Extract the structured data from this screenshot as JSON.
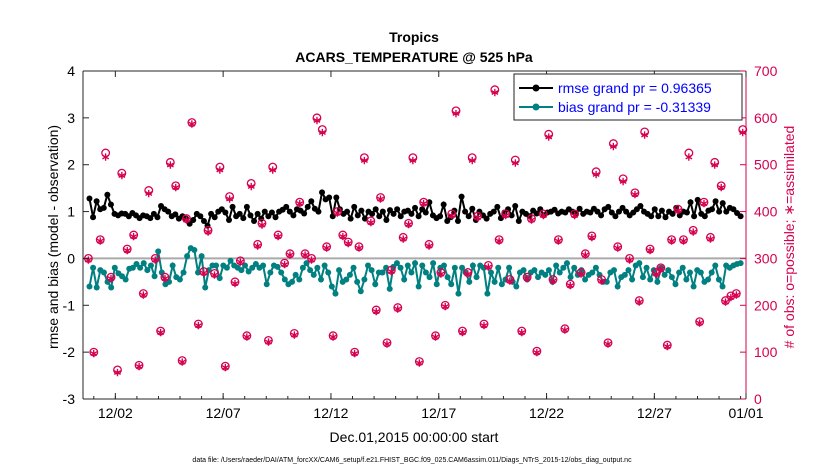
{
  "chart_data": {
    "type": "line",
    "title": "Tropics",
    "subtitle": "ACARS_TEMPERATURE @ 525 hPa",
    "xlabel": "Dec.01,2015 00:00:00 start",
    "ylabel_left": "rmse and bias (model - observation)",
    "ylabel_right": "# of obs: o=possible; ∗=assimilated",
    "footer": "data file: /Users/raeder/DAI/ATM_forcXX/CAM6_setup/f.e21.FHIST_BGC.f09_025.CAM6assim.011/Diags_NTrS_2015-12/obs_diag_output.nc",
    "xlim": [
      0.5,
      31.25
    ],
    "ylim_left": [
      -3,
      4
    ],
    "ylim_right": [
      0,
      700
    ],
    "x_ticks": [
      {
        "value": 2,
        "label": "12/02"
      },
      {
        "value": 7,
        "label": "12/07"
      },
      {
        "value": 12,
        "label": "12/12"
      },
      {
        "value": 17,
        "label": "12/17"
      },
      {
        "value": 22,
        "label": "12/22"
      },
      {
        "value": 27,
        "label": "12/27"
      },
      {
        "value": 32,
        "label": "01/01"
      }
    ],
    "y_ticks_left": [
      "-3",
      "-2",
      "-1",
      "0",
      "1",
      "2",
      "3",
      "4"
    ],
    "y_ticks_right": [
      "0",
      "100",
      "200",
      "300",
      "400",
      "500",
      "600",
      "700"
    ],
    "legend": {
      "placement": "top-right",
      "entries": [
        {
          "label": "rmse grand pr = 0.96365",
          "color": "#0000ff"
        },
        {
          "label": "bias grand pr = -0.31339",
          "color": "#0000ff"
        }
      ]
    },
    "series": [
      {
        "name": "rmse",
        "color": "#000000",
        "axis": "left",
        "values": [
          1.28,
          0.88,
          1.22,
          1.05,
          1.08,
          1.36,
          1.15,
          0.95,
          0.92,
          0.96,
          0.95,
          0.9,
          0.97,
          0.92,
          0.86,
          0.92,
          0.9,
          0.86,
          0.95,
          0.88,
          1.12,
          1.05,
          1.0,
          0.9,
          0.94,
          0.85,
          0.9,
          0.85,
          0.74,
          0.82,
          0.95,
          0.9,
          0.8,
          0.7,
          0.95,
          0.88,
          1.0,
          1.05,
          0.98,
          0.82,
          1.1,
          0.9,
          0.95,
          0.86,
          1.1,
          0.92,
          0.8,
          0.95,
          0.85,
          1.0,
          0.9,
          0.98,
          0.88,
          1.0,
          1.04,
          1.1,
          1.0,
          0.92,
          1.05,
          1.02,
          0.96,
          1.1,
          1.22,
          1.06,
          1.0,
          1.41,
          1.26,
          1.3,
          0.9,
          1.3,
          1.05,
          0.95,
          1.0,
          0.85,
          1.1,
          0.92,
          1.02,
          0.85,
          1.0,
          0.95,
          1.05,
          0.9,
          1.0,
          0.82,
          1.03,
          0.95,
          1.05,
          0.9,
          1.0,
          1.02,
          0.95,
          1.08,
          0.9,
          1.05,
          0.98,
          1.2,
          0.92,
          0.86,
          0.9,
          1.15,
          0.8,
          0.88,
          1.02,
          0.8,
          1.32,
          1.0,
          0.9,
          1.06,
          0.82,
          1.0,
          0.92,
          0.85,
          0.95,
          1.0,
          1.1,
          0.86,
          0.98,
          1.05,
          0.92,
          1.12,
          0.8,
          1.0,
          0.95,
          0.9,
          1.02,
          0.96,
          1.05,
          0.92,
          0.98,
          1.0,
          1.04,
          0.96,
          1.0,
          0.98,
          1.05,
          1.0,
          0.95,
          1.06,
          0.95,
          1.0,
          0.98,
          1.06,
          1.0,
          0.92,
          1.05,
          1.1,
          0.98,
          0.9,
          1.0,
          1.08,
          1.0,
          0.92,
          0.98,
          1.05,
          1.12,
          1.0,
          0.95,
          0.9,
          1.05,
          0.9,
          1.02,
          0.88,
          1.0,
          0.95,
          1.08,
          0.92,
          1.0,
          0.98,
          1.2,
          0.9,
          1.25,
          0.95,
          0.9,
          1.02,
          1.05,
          1.22,
          1.0,
          1.18,
          1.0,
          1.08,
          1.05,
          0.97,
          0.9
        ]
      },
      {
        "name": "bias",
        "color": "#008080",
        "axis": "left",
        "values": [
          -0.6,
          -0.2,
          -0.62,
          -0.25,
          -0.3,
          -0.5,
          -0.62,
          -0.2,
          -0.32,
          -0.38,
          -0.45,
          -0.22,
          -0.2,
          -0.12,
          -0.2,
          -0.1,
          -0.25,
          -0.15,
          -0.38,
          0.15,
          -0.3,
          -0.55,
          -0.5,
          -0.15,
          -0.4,
          -0.45,
          -0.3,
          0.05,
          0.22,
          0.18,
          -0.3,
          0.05,
          -0.62,
          -0.25,
          -0.15,
          -0.15,
          -0.42,
          -0.15,
          -0.2,
          -0.05,
          -0.15,
          -0.2,
          -0.25,
          -0.15,
          -0.28,
          -0.2,
          -0.12,
          -0.2,
          -0.15,
          -0.55,
          -0.3,
          -0.15,
          -0.18,
          -0.3,
          -0.45,
          -0.55,
          -0.5,
          -0.35,
          -0.45,
          -0.2,
          -0.1,
          -0.25,
          -0.35,
          -0.2,
          -0.45,
          -0.15,
          -0.3,
          -0.6,
          -0.75,
          -0.25,
          -0.5,
          -0.45,
          -0.35,
          -0.2,
          -0.5,
          -0.7,
          -0.45,
          -0.15,
          -0.25,
          -0.55,
          -0.3,
          -0.3,
          -0.2,
          -0.65,
          -0.18,
          -0.1,
          -0.2,
          -0.45,
          -0.15,
          -0.3,
          -0.1,
          -0.6,
          -0.15,
          -0.3,
          -0.4,
          -0.1,
          -0.55,
          -0.2,
          -0.15,
          -0.4,
          -0.55,
          -0.2,
          -0.75,
          -0.2,
          -0.3,
          -0.5,
          -0.15,
          -0.4,
          -0.15,
          -0.2,
          -0.75,
          -0.3,
          -0.5,
          -0.2,
          -0.55,
          -0.45,
          -0.2,
          -0.5,
          -0.6,
          -0.3,
          -0.25,
          -0.45,
          -0.3,
          -0.25,
          -0.4,
          -0.3,
          -0.35,
          -0.25,
          -0.5,
          -0.15,
          -0.3,
          -0.2,
          -0.1,
          -0.4,
          -0.2,
          -0.35,
          -0.25,
          -0.45,
          -0.35,
          -0.3,
          -0.2,
          -0.35,
          -0.5,
          -0.5,
          -0.3,
          -0.25,
          -0.6,
          -0.4,
          -0.35,
          -0.25,
          -0.45,
          -0.15,
          -0.1,
          -0.4,
          -0.2,
          -0.45,
          -0.25,
          -0.5,
          -0.2,
          -0.35,
          -0.25,
          -0.4,
          -0.55,
          -0.3,
          -0.2,
          -0.45,
          -0.3,
          -0.6,
          -0.25,
          -0.3,
          -0.5,
          -0.45,
          -0.3,
          -0.15,
          -0.45,
          -0.6,
          -0.15,
          -0.2,
          -0.15,
          -0.12,
          -0.1
        ]
      }
    ],
    "obs_possible": {
      "name": "possible",
      "marker": "o",
      "color": "#d6004f",
      "axis": "right",
      "x": [
        0.75,
        1.0,
        1.3,
        1.55,
        1.8,
        2.1,
        2.3,
        2.55,
        2.85,
        3.1,
        3.3,
        3.55,
        3.85,
        4.1,
        4.3,
        4.55,
        4.8,
        5.1,
        5.3,
        5.55,
        5.85,
        6.1,
        6.3,
        6.6,
        6.85,
        7.1,
        7.3,
        7.55,
        7.8,
        8.1,
        8.3,
        8.6,
        8.8,
        9.1,
        9.3,
        9.55,
        9.85,
        10.1,
        10.3,
        10.55,
        10.8,
        11.1,
        11.35,
        11.6,
        11.8,
        12.1,
        12.3,
        12.55,
        12.8,
        13.1,
        13.3,
        13.55,
        13.85,
        14.1,
        14.3,
        14.6,
        14.8,
        15.1,
        15.35,
        15.6,
        15.8,
        16.1,
        16.3,
        16.55,
        16.85,
        17.1,
        17.3,
        17.6,
        17.8,
        18.1,
        18.35,
        18.55,
        18.8,
        19.1,
        19.3,
        19.6,
        19.8,
        20.1,
        20.3,
        20.55,
        20.85,
        21.1,
        21.3,
        21.55,
        21.85,
        22.1,
        22.3,
        22.55,
        22.85,
        23.1,
        23.3,
        23.6,
        23.8,
        24.1,
        24.3,
        24.55,
        24.85,
        25.1,
        25.3,
        25.55,
        25.85,
        26.1,
        26.3,
        26.55,
        26.8,
        27.1,
        27.3,
        27.6,
        27.8,
        28.1,
        28.35,
        28.6,
        28.8,
        29.1,
        29.3,
        29.6,
        29.8,
        30.1,
        30.3,
        30.55,
        30.8,
        31.1
      ],
      "values": [
        300,
        100,
        340,
        525,
        260,
        62,
        482,
        320,
        350,
        72,
        225,
        445,
        300,
        145,
        260,
        505,
        455,
        82,
        385,
        590,
        160,
        272,
        360,
        268,
        495,
        70,
        432,
        250,
        295,
        135,
        460,
        330,
        375,
        125,
        495,
        350,
        290,
        310,
        140,
        420,
        310,
        300,
        600,
        575,
        325,
        135,
        400,
        350,
        335,
        100,
        325,
        515,
        380,
        190,
        430,
        120,
        275,
        195,
        345,
        375,
        515,
        80,
        420,
        330,
        135,
        270,
        200,
        395,
        615,
        145,
        270,
        515,
        390,
        160,
        285,
        660,
        340,
        395,
        255,
        510,
        145,
        260,
        385,
        102,
        395,
        565,
        255,
        340,
        150,
        245,
        395,
        270,
        310,
        348,
        485,
        255,
        120,
        545,
        325,
        470,
        300,
        440,
        210,
        570,
        320,
        270,
        280,
        115,
        340,
        405,
        340,
        525,
        360,
        165,
        420,
        345,
        505,
        455,
        210,
        220,
        225,
        575
      ]
    },
    "obs_assimilated": {
      "name": "assimilated",
      "marker": "*",
      "color": "#d6004f",
      "axis": "right",
      "x": [
        0.75,
        1.0,
        1.3,
        1.55,
        1.8,
        2.1,
        2.3,
        2.55,
        2.85,
        3.1,
        3.3,
        3.55,
        3.85,
        4.1,
        4.3,
        4.55,
        4.8,
        5.1,
        5.3,
        5.55,
        5.85,
        6.1,
        6.3,
        6.6,
        6.85,
        7.1,
        7.3,
        7.55,
        7.8,
        8.1,
        8.3,
        8.6,
        8.8,
        9.1,
        9.3,
        9.55,
        9.85,
        10.1,
        10.3,
        10.55,
        10.8,
        11.1,
        11.35,
        11.6,
        11.8,
        12.1,
        12.3,
        12.55,
        12.8,
        13.1,
        13.3,
        13.55,
        13.85,
        14.1,
        14.3,
        14.6,
        14.8,
        15.1,
        15.35,
        15.6,
        15.8,
        16.1,
        16.3,
        16.55,
        16.85,
        17.1,
        17.3,
        17.6,
        17.8,
        18.1,
        18.35,
        18.55,
        18.8,
        19.1,
        19.3,
        19.6,
        19.8,
        20.1,
        20.3,
        20.55,
        20.85,
        21.1,
        21.3,
        21.55,
        21.85,
        22.1,
        22.3,
        22.55,
        22.85,
        23.1,
        23.3,
        23.6,
        23.8,
        24.1,
        24.3,
        24.55,
        24.85,
        25.1,
        25.3,
        25.55,
        25.85,
        26.1,
        26.3,
        26.55,
        26.8,
        27.1,
        27.3,
        27.6,
        27.8,
        28.1,
        28.35,
        28.6,
        28.8,
        29.1,
        29.3,
        29.6,
        29.8,
        30.1,
        30.3,
        30.55,
        30.8,
        31.1
      ],
      "values": [
        298,
        98,
        338,
        518,
        258,
        58,
        478,
        318,
        348,
        70,
        223,
        440,
        298,
        143,
        258,
        500,
        452,
        80,
        383,
        588,
        158,
        270,
        358,
        266,
        490,
        68,
        428,
        248,
        293,
        133,
        455,
        328,
        372,
        123,
        490,
        348,
        288,
        308,
        138,
        418,
        308,
        298,
        595,
        570,
        323,
        133,
        398,
        348,
        333,
        98,
        323,
        510,
        378,
        188,
        428,
        118,
        273,
        193,
        343,
        373,
        510,
        78,
        418,
        328,
        133,
        268,
        198,
        393,
        610,
        143,
        268,
        510,
        388,
        158,
        283,
        655,
        338,
        393,
        253,
        505,
        143,
        258,
        383,
        100,
        393,
        560,
        253,
        338,
        148,
        243,
        393,
        268,
        308,
        346,
        480,
        253,
        118,
        540,
        323,
        465,
        298,
        438,
        208,
        565,
        318,
        268,
        278,
        113,
        338,
        403,
        338,
        518,
        358,
        163,
        418,
        343,
        500,
        452,
        208,
        218,
        223,
        570
      ]
    }
  }
}
